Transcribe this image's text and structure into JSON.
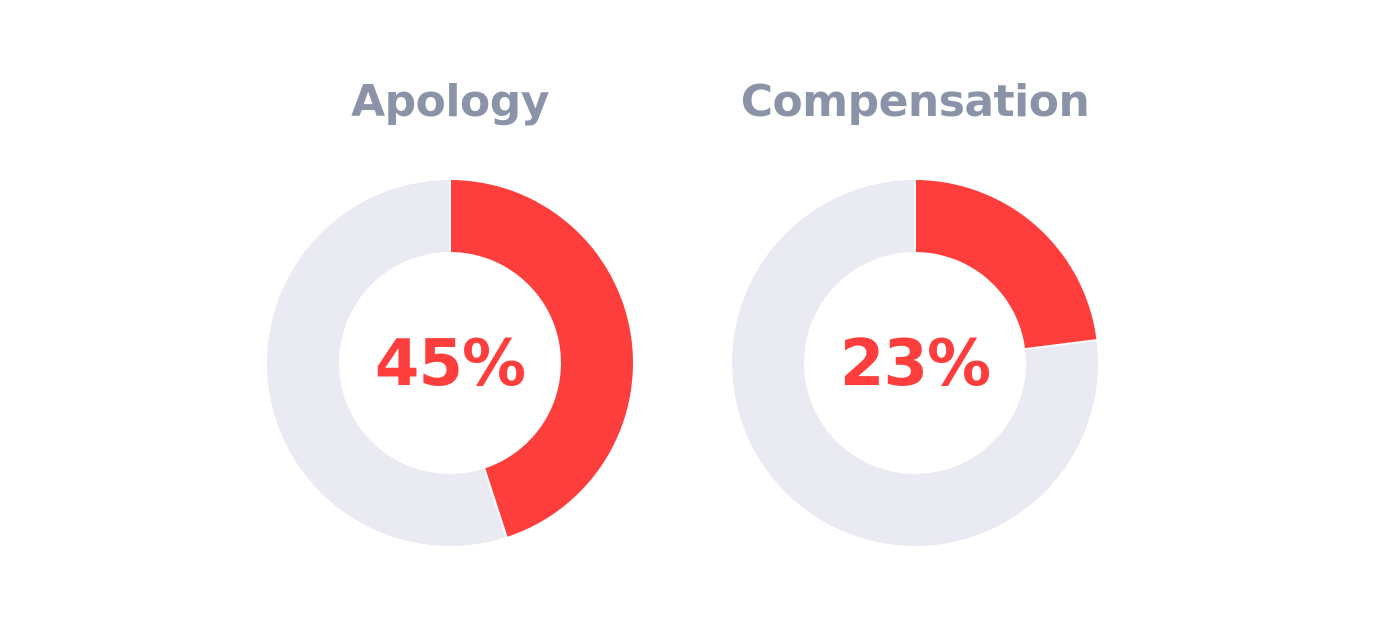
{
  "colors": {
    "accent": "#fd3e3d",
    "track": "#e9eaf2",
    "title": "#8b93a8",
    "separator": "#ffffff"
  },
  "chart_data": [
    {
      "type": "pie",
      "title": "Apology",
      "value_percent": 45,
      "label": "45%",
      "slices": [
        {
          "value": 45,
          "color": "#fd3e3d"
        },
        {
          "value": 55,
          "color": "#e9eaf2"
        }
      ]
    },
    {
      "type": "pie",
      "title": "Compensation",
      "value_percent": 23,
      "label": "23%",
      "slices": [
        {
          "value": 23,
          "color": "#fd3e3d"
        },
        {
          "value": 77,
          "color": "#e9eaf2"
        }
      ]
    }
  ]
}
